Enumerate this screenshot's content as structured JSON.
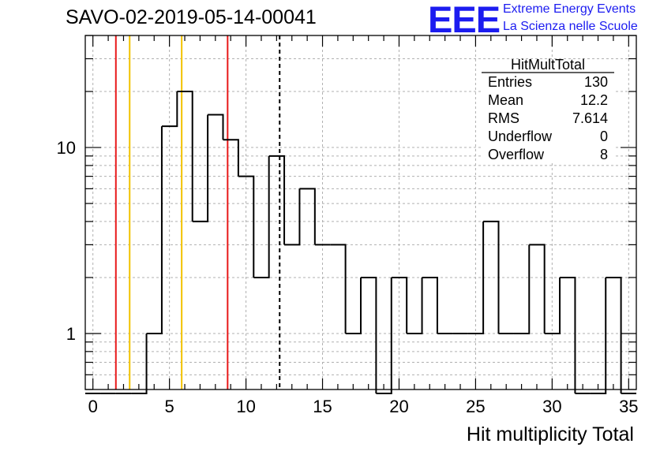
{
  "title": "SAVO-02-2019-05-14-00041",
  "logo": {
    "mark": "EEE",
    "line1": "Extreme Energy Events",
    "line2": "La Scienza nelle Scuole"
  },
  "stats": {
    "name": "HitMultTotal",
    "rows": [
      {
        "label": "Entries",
        "value": "130"
      },
      {
        "label": "Mean",
        "value": "12.2"
      },
      {
        "label": "RMS",
        "value": "7.614"
      },
      {
        "label": "Underflow",
        "value": "0"
      },
      {
        "label": "Overflow",
        "value": "8"
      }
    ]
  },
  "chart_data": {
    "type": "histogram",
    "title": "SAVO-02-2019-05-14-00041",
    "xlabel": "Hit multiplicity Total",
    "ylabel": "",
    "xlim": [
      -0.5,
      35.5
    ],
    "ylim": [
      0.5,
      40
    ],
    "yscale": "log",
    "grid": true,
    "bin_width": 1,
    "bin_start": -0.5,
    "values": [
      0,
      0,
      0,
      0,
      1,
      13,
      20,
      4,
      15,
      11,
      7,
      2,
      9,
      3,
      6,
      3,
      3,
      1,
      2,
      0,
      2,
      1,
      2,
      1,
      1,
      1,
      4,
      1,
      1,
      3,
      1,
      2,
      0,
      0,
      2,
      0
    ],
    "xticks": [
      0,
      5,
      10,
      15,
      20,
      25,
      30,
      35
    ],
    "yticks": [
      1,
      10
    ],
    "vlines": [
      {
        "x": 1.5,
        "color": "#e8191a",
        "style": "solid"
      },
      {
        "x": 2.4,
        "color": "#f2c200",
        "style": "solid"
      },
      {
        "x": 5.8,
        "color": "#f2c200",
        "style": "solid"
      },
      {
        "x": 8.8,
        "color": "#e8191a",
        "style": "solid"
      },
      {
        "x": 12.2,
        "color": "#000000",
        "style": "dashed"
      }
    ]
  }
}
